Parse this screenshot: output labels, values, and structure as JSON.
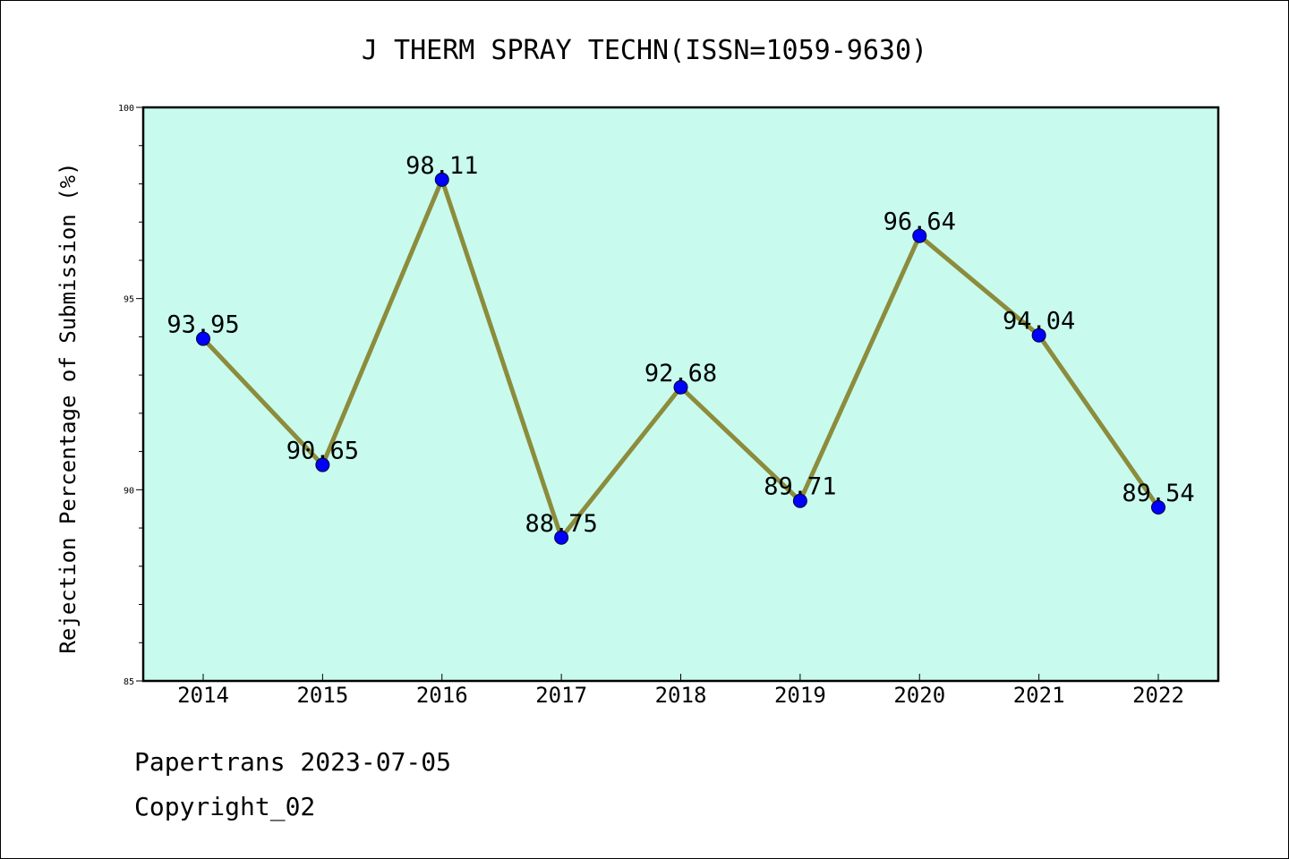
{
  "chart_data": {
    "type": "line",
    "title": "J THERM SPRAY TECHN(ISSN=1059-9630)",
    "xlabel": "",
    "ylabel": "Rejection Percentage of Submission (%)",
    "categories": [
      "2014",
      "2015",
      "2016",
      "2017",
      "2018",
      "2019",
      "2020",
      "2021",
      "2022"
    ],
    "values": [
      93.95,
      90.65,
      98.11,
      88.75,
      92.68,
      89.71,
      96.64,
      94.04,
      89.54
    ],
    "data_labels": [
      "93.95",
      "90.65",
      "98.11",
      "88.75",
      "92.68",
      "89.71",
      "96.64",
      "94.04",
      "89.54"
    ],
    "ylim": [
      85,
      100
    ],
    "yticks": [
      85,
      90,
      95,
      100
    ],
    "y_minor_step": 1,
    "grid": false,
    "legend": "none",
    "colors": {
      "plot_background": "#c8fbee",
      "line": "#8c8c3c",
      "marker": "#0000ff"
    }
  },
  "footer": {
    "line1": "Papertrans 2023-07-05",
    "line2": "Copyright_02"
  }
}
